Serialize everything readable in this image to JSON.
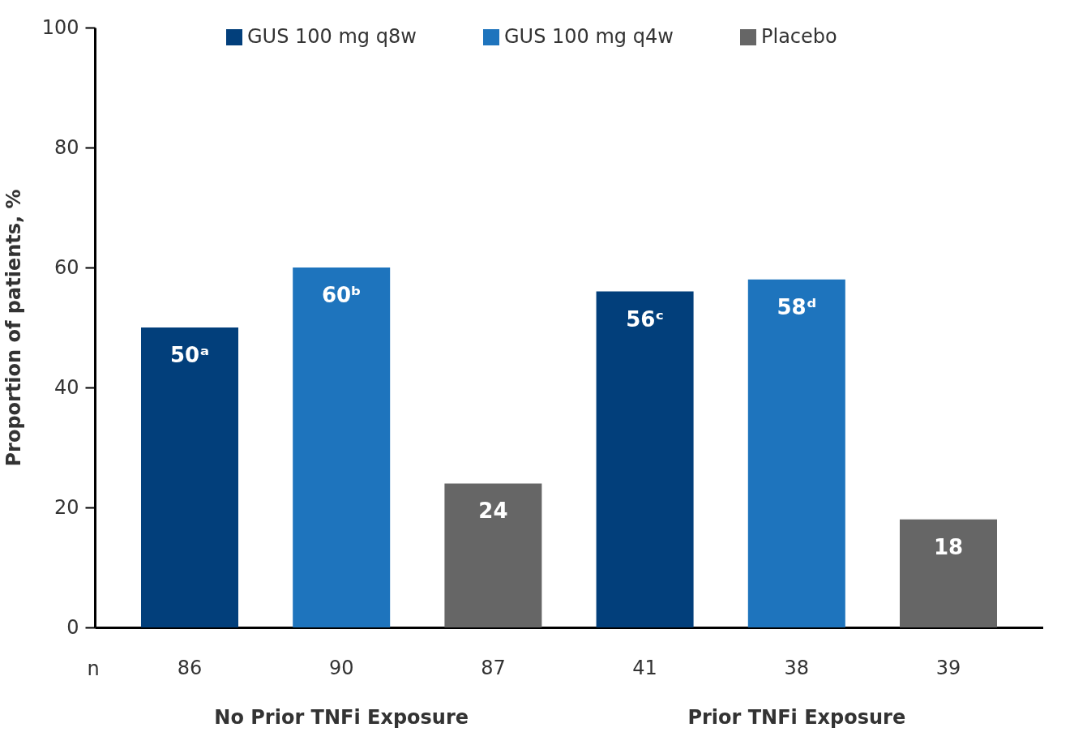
{
  "chart_data": {
    "type": "bar",
    "ylabel": "Proportion of patients, %",
    "categories": [
      "86",
      "90",
      "87",
      "41",
      "38",
      "39"
    ],
    "series": [
      {
        "name": "GUS 100 mg q8w",
        "color": "#023f7b",
        "values": [
          50,
          null,
          null,
          56,
          null,
          null
        ],
        "value_labels": [
          "50ᵃ",
          null,
          null,
          "56ᶜ",
          null,
          null
        ]
      },
      {
        "name": "GUS 100 mg q4w",
        "color": "#1e74bd",
        "values": [
          null,
          60,
          null,
          null,
          58,
          null
        ],
        "value_labels": [
          null,
          "60ᵇ",
          null,
          null,
          "58ᵈ",
          null
        ]
      },
      {
        "name": "Placebo",
        "color": "#666666",
        "values": [
          null,
          null,
          24,
          null,
          null,
          18
        ],
        "value_labels": [
          null,
          null,
          "24",
          null,
          null,
          "18"
        ]
      }
    ],
    "ylim": [
      0,
      100
    ],
    "yticks": [
      0,
      20,
      40,
      60,
      80,
      100
    ],
    "grid": false,
    "legend": "top",
    "annotations": [
      "n",
      "No Prior TNFi Exposure",
      "Prior TNFi Exposure"
    ]
  }
}
